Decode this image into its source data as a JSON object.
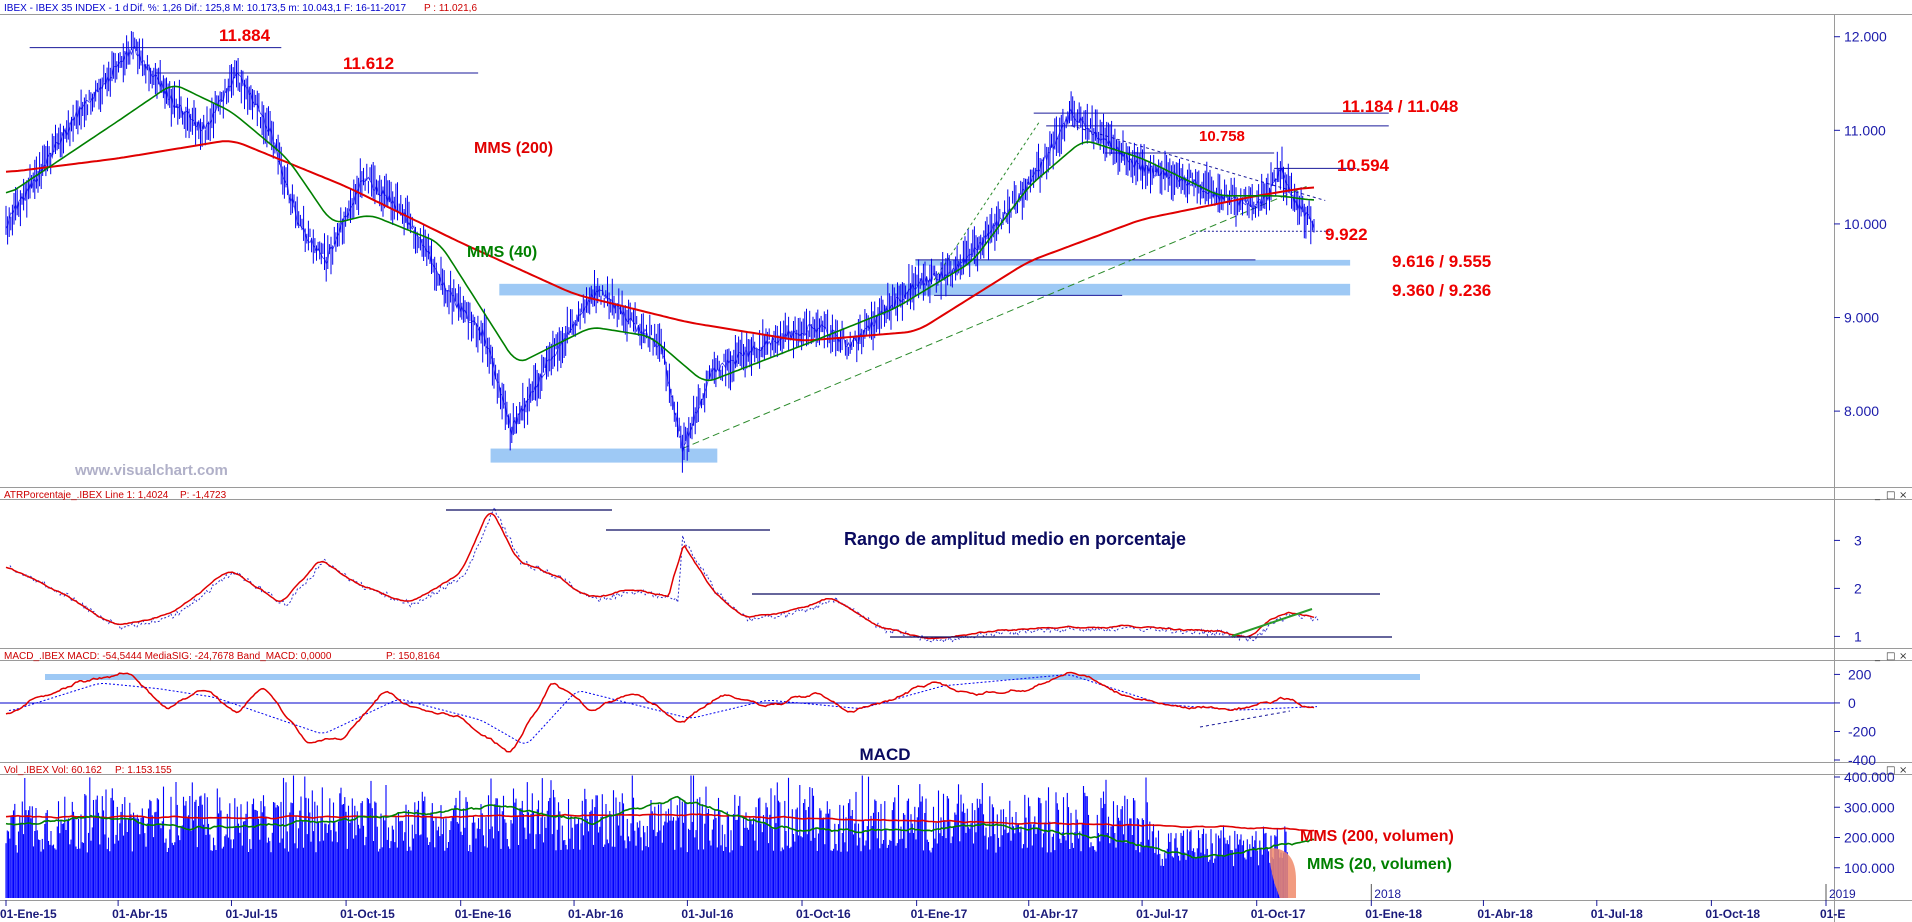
{
  "panels": [
    {
      "header": "IBEX - IBEX 35 INDEX -  1 d",
      "header_stats": "Dif. %: 1,26  Dif.: 125,8  M: 10.173,5  m: 10.043,1  F: 16-11-2017",
      "header_price": "P : 11.021,6"
    },
    {
      "header": "ATRPorcentaje_.IBEX  Line 1: 1,4024",
      "header_price": "P: -1,4723"
    },
    {
      "header": "MACD_.IBEX  MACD: -54,5444  MediaSIG: -24,7678  Band_MACD: 0,0000",
      "header_price": "P: 150,8164"
    },
    {
      "header": "Vol_.IBEX  Vol: 60.162",
      "header_price": "P: 1.153.155"
    }
  ],
  "window_controls": [
    "_",
    "□",
    "×"
  ],
  "watermark": "www.visualchart.com",
  "colors": {
    "price": "#0000ee",
    "mms200": "#e00000",
    "mms40": "#008000",
    "atr": "#e00000",
    "macd": "#e00000",
    "signal": "#0000ee",
    "volume": "#0000ff",
    "band": "#9ec9f5",
    "annotation": "#ee0000",
    "panel_label": "#0a0a60",
    "axis": "#1a1aaa"
  },
  "x_tick_labels": [
    "01-Ene-15",
    "01-Abr-15",
    "01-Jul-15",
    "01-Oct-15",
    "01-Ene-16",
    "01-Abr-16",
    "01-Jul-16",
    "01-Oct-16",
    "01-Ene-17",
    "01-Abr-17",
    "01-Jul-17",
    "01-Oct-17",
    "01-Ene-18",
    "01-Abr-18",
    "01-Jul-18",
    "01-Oct-18",
    "01-E"
  ],
  "year_labels": [
    "2018",
    "2019"
  ],
  "chart_data": [
    {
      "type": "line",
      "title": "IBEX 35 INDEX (1 d)",
      "x_range": [
        "2015-01-01",
        "2019-01-01"
      ],
      "ylim": [
        7200,
        12200
      ],
      "y_ticks": [
        8000,
        9000,
        10000,
        11000,
        12000
      ],
      "y_tick_labels": [
        "8.000",
        "9.000",
        "10.000",
        "11.000",
        "12.000"
      ],
      "series": [
        {
          "name": "IBEX",
          "x": [
            "2015-01-01",
            "2015-03-01",
            "2015-04-13",
            "2015-05-15",
            "2015-06-10",
            "2015-07-05",
            "2015-08-01",
            "2015-08-24",
            "2015-09-15",
            "2015-10-15",
            "2015-11-10",
            "2015-12-01",
            "2015-12-20",
            "2016-01-20",
            "2016-02-11",
            "2016-03-15",
            "2016-04-20",
            "2016-05-20",
            "2016-06-10",
            "2016-06-27",
            "2016-07-20",
            "2016-08-15",
            "2016-09-15",
            "2016-10-15",
            "2016-11-10",
            "2016-12-01",
            "2016-12-31",
            "2017-01-31",
            "2017-03-01",
            "2017-04-01",
            "2017-05-05",
            "2017-05-31",
            "2017-06-30",
            "2017-07-31",
            "2017-08-31",
            "2017-09-30",
            "2017-10-10",
            "2017-10-20",
            "2017-11-03",
            "2017-11-16"
          ],
          "y": [
            10000,
            11200,
            11884,
            11300,
            11000,
            11612,
            11000,
            10000,
            9600,
            10500,
            10200,
            9800,
            9300,
            8800,
            7800,
            8600,
            9300,
            8900,
            8700,
            7600,
            8400,
            8600,
            8800,
            8900,
            8700,
            9000,
            9350,
            9500,
            9900,
            10400,
            11184,
            10900,
            10600,
            10500,
            10300,
            10200,
            10300,
            10594,
            10200,
            10000
          ]
        },
        {
          "name": "MMS (200)",
          "x": [
            "2015-01-01",
            "2015-04-01",
            "2015-07-01",
            "2015-10-01",
            "2016-01-01",
            "2016-04-01",
            "2016-07-01",
            "2016-10-01",
            "2017-01-01",
            "2017-04-01",
            "2017-07-01",
            "2017-10-01",
            "2017-11-16"
          ],
          "y": [
            10550,
            10700,
            10900,
            10400,
            9800,
            9250,
            8950,
            8750,
            8850,
            9600,
            10050,
            10300,
            10400
          ]
        },
        {
          "name": "MMS (40)",
          "x": [
            "2015-01-01",
            "2015-04-01",
            "2015-05-15",
            "2015-07-01",
            "2015-08-15",
            "2015-09-20",
            "2015-10-20",
            "2015-12-15",
            "2016-02-15",
            "2016-04-15",
            "2016-06-01",
            "2016-07-15",
            "2016-10-01",
            "2016-12-15",
            "2017-02-15",
            "2017-04-01",
            "2017-05-15",
            "2017-07-01",
            "2017-09-01",
            "2017-10-20",
            "2017-11-16"
          ],
          "y": [
            10300,
            11100,
            11500,
            11200,
            10700,
            10000,
            10100,
            9800,
            8500,
            8900,
            8800,
            8300,
            8700,
            9100,
            9600,
            10400,
            10900,
            10700,
            10300,
            10300,
            10250
          ]
        }
      ],
      "annotations": [
        {
          "text": "11.884",
          "value": 11884
        },
        {
          "text": "11.612",
          "value": 11612
        },
        {
          "text": "MMS (200)"
        },
        {
          "text": "MMS (40)"
        },
        {
          "text": "10.758",
          "value": 10758
        },
        {
          "text": "11.184 / 11.048",
          "value": [
            11184,
            11048
          ]
        },
        {
          "text": "10.594",
          "value": 10594
        },
        {
          "text": "9.922",
          "value": 9922
        },
        {
          "text": "9.616 / 9.555",
          "value": [
            9616,
            9555
          ]
        },
        {
          "text": "9.360 / 9.236",
          "value": [
            9360,
            9236
          ]
        }
      ]
    },
    {
      "type": "line",
      "title": "Rango de amplitud medio en porcentaje",
      "ylim": [
        0.8,
        3.8
      ],
      "y_ticks": [
        1,
        2,
        3
      ],
      "y_tick_labels": [
        "1",
        "2",
        "3"
      ],
      "series": [
        {
          "name": "ATRPorcentaje",
          "x": [
            "2015-01-01",
            "2015-02-15",
            "2015-03-31",
            "2015-05-15",
            "2015-06-30",
            "2015-08-10",
            "2015-09-10",
            "2015-10-10",
            "2015-11-20",
            "2016-01-01",
            "2016-01-25",
            "2016-02-15",
            "2016-03-15",
            "2016-04-15",
            "2016-05-20",
            "2016-06-20",
            "2016-06-24",
            "2016-07-20",
            "2016-08-15",
            "2016-09-20",
            "2016-10-25",
            "2016-12-01",
            "2017-01-15",
            "2017-03-01",
            "2017-05-01",
            "2017-07-01",
            "2017-09-01",
            "2017-09-25",
            "2017-10-10",
            "2017-10-25",
            "2017-11-16"
          ],
          "y": [
            2.5,
            1.9,
            1.2,
            1.5,
            2.4,
            1.7,
            2.6,
            2.1,
            1.7,
            2.3,
            3.7,
            2.6,
            2.3,
            1.8,
            2.0,
            1.8,
            3.1,
            2.0,
            1.4,
            1.5,
            1.8,
            1.2,
            0.95,
            1.1,
            1.2,
            1.2,
            1.1,
            0.95,
            1.3,
            1.5,
            1.4
          ]
        }
      ]
    },
    {
      "type": "line",
      "title": "MACD",
      "ylim": [
        -400,
        280
      ],
      "y_ticks": [
        -400,
        -200,
        0,
        200
      ],
      "y_tick_labels": [
        "-400",
        "-200",
        "0",
        "200"
      ],
      "series": [
        {
          "name": "MACD",
          "x": [
            "2015-01-01",
            "2015-01-31",
            "2015-03-01",
            "2015-04-10",
            "2015-05-10",
            "2015-06-10",
            "2015-07-05",
            "2015-07-25",
            "2015-08-31",
            "2015-09-30",
            "2015-10-31",
            "2015-12-01",
            "2015-12-31",
            "2016-02-10",
            "2016-03-15",
            "2016-04-15",
            "2016-05-20",
            "2016-06-27",
            "2016-07-31",
            "2016-08-31",
            "2016-10-10",
            "2016-11-10",
            "2016-12-10",
            "2017-01-15",
            "2017-02-15",
            "2017-04-01",
            "2017-05-05",
            "2017-06-15",
            "2017-07-31",
            "2017-09-15",
            "2017-10-25",
            "2017-11-16"
          ],
          "y": [
            -80,
            50,
            150,
            210,
            -50,
            100,
            -80,
            130,
            -280,
            -240,
            80,
            -50,
            -100,
            -360,
            150,
            -50,
            80,
            -150,
            80,
            -30,
            70,
            -60,
            20,
            150,
            60,
            90,
            230,
            60,
            -30,
            -50,
            40,
            -54.5
          ]
        },
        {
          "name": "MediaSIG",
          "x": [
            "2015-01-01",
            "2015-03-15",
            "2015-05-01",
            "2015-06-15",
            "2015-09-10",
            "2015-11-10",
            "2016-01-15",
            "2016-02-20",
            "2016-04-01",
            "2016-07-01",
            "2016-09-01",
            "2016-11-15",
            "2017-01-20",
            "2017-05-01",
            "2017-07-15",
            "2017-09-15",
            "2017-11-16"
          ],
          "y": [
            -60,
            140,
            100,
            40,
            -220,
            30,
            -120,
            -300,
            90,
            -110,
            20,
            -40,
            120,
            200,
            -10,
            -50,
            -24.8
          ]
        }
      ]
    },
    {
      "type": "bar",
      "title": "Vol_.IBEX",
      "ylim": [
        0,
        400000
      ],
      "y_ticks": [
        100000,
        200000,
        300000,
        400000
      ],
      "y_tick_labels": [
        "100.000",
        "200.000",
        "300.000",
        "400.000"
      ],
      "series": [
        {
          "name": "MMS (200, volumen)",
          "x": [
            "2015-01-01",
            "2015-07-01",
            "2016-01-01",
            "2016-07-01",
            "2017-01-01",
            "2017-07-01",
            "2017-11-16"
          ],
          "y": [
            270000,
            265000,
            270000,
            275000,
            255000,
            240000,
            225000
          ]
        },
        {
          "name": "MMS (20, volumen)",
          "x": [
            "2015-01-01",
            "2015-03-15",
            "2015-06-01",
            "2015-09-01",
            "2015-12-01",
            "2016-02-01",
            "2016-04-15",
            "2016-06-20",
            "2016-09-15",
            "2016-12-15",
            "2017-03-01",
            "2017-06-01",
            "2017-08-15",
            "2017-10-10",
            "2017-11-16"
          ],
          "y": [
            240000,
            270000,
            230000,
            250000,
            280000,
            300000,
            250000,
            330000,
            230000,
            220000,
            240000,
            200000,
            130000,
            170000,
            190000
          ]
        }
      ],
      "annotations": [
        {
          "text": "MMS (200, volumen)"
        },
        {
          "text": "MMS (20, volumen)"
        }
      ]
    }
  ]
}
